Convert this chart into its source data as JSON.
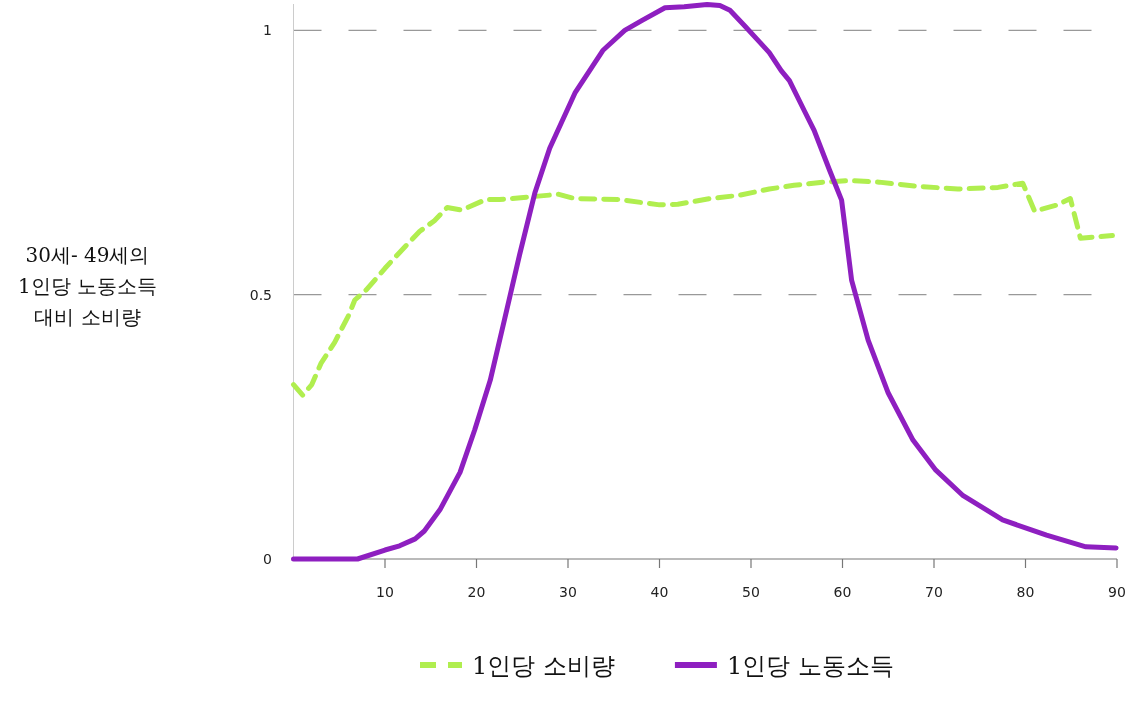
{
  "chart_data": {
    "type": "line",
    "ylabel": "30세- 49세의 1인당 노동소득 대비 소비량",
    "xlim": [
      0,
      90
    ],
    "ylim": [
      0,
      1.05
    ],
    "xticks": [
      10,
      20,
      30,
      40,
      50,
      60,
      70,
      80,
      90
    ],
    "yticks": [
      0,
      0.5,
      1
    ],
    "grid": "y",
    "legend": "bottom",
    "marker": "none",
    "series": [
      {
        "name": "1인당 소비량",
        "color": "#b0ee4f",
        "line_style": "dashed",
        "x": [
          0,
          1,
          2,
          3,
          4.5,
          6,
          6.7,
          8,
          10,
          11.6,
          13.8,
          15.4,
          16.8,
          18.4,
          21,
          22.5,
          26.4,
          29,
          30.7,
          35.6,
          40,
          42,
          45.5,
          48.7,
          52,
          54.7,
          58,
          60.8,
          64,
          68.3,
          72.6,
          77,
          79.7,
          81,
          83.5,
          84.9,
          86,
          89.5
        ],
        "values": [
          0.33,
          0.31,
          0.33,
          0.37,
          0.41,
          0.46,
          0.49,
          0.51,
          0.55,
          0.58,
          0.62,
          0.64,
          0.665,
          0.66,
          0.68,
          0.68,
          0.686,
          0.69,
          0.682,
          0.68,
          0.67,
          0.671,
          0.682,
          0.688,
          0.7,
          0.707,
          0.713,
          0.716,
          0.713,
          0.705,
          0.7,
          0.703,
          0.711,
          0.658,
          0.67,
          0.682,
          0.607,
          0.612
        ]
      },
      {
        "name": "1인당 노동소득",
        "color": "#8e1fc0",
        "line_style": "solid",
        "x": [
          0,
          7,
          10,
          11.6,
          13.3,
          14.3,
          16,
          18.2,
          19.8,
          21.5,
          23.1,
          24.7,
          26.4,
          28,
          30.8,
          33.8,
          36.2,
          38.1,
          40.6,
          42.7,
          45.2,
          46.6,
          47.7,
          49.3,
          51,
          52,
          53.3,
          54.2,
          55.8,
          56.9,
          58.6,
          59.9,
          61,
          62.8,
          65,
          67.7,
          70.2,
          73.1,
          77.5,
          82.3,
          86.6,
          89.9
        ],
        "values": [
          0,
          0,
          0.017,
          0.025,
          0.038,
          0.053,
          0.093,
          0.164,
          0.244,
          0.338,
          0.456,
          0.575,
          0.694,
          0.777,
          0.883,
          0.962,
          1.0,
          1.019,
          1.043,
          1.045,
          1.049,
          1.047,
          1.038,
          1.009,
          0.977,
          0.958,
          0.924,
          0.905,
          0.849,
          0.811,
          0.735,
          0.679,
          0.527,
          0.414,
          0.314,
          0.225,
          0.168,
          0.121,
          0.074,
          0.045,
          0.023,
          0.021
        ]
      }
    ]
  }
}
